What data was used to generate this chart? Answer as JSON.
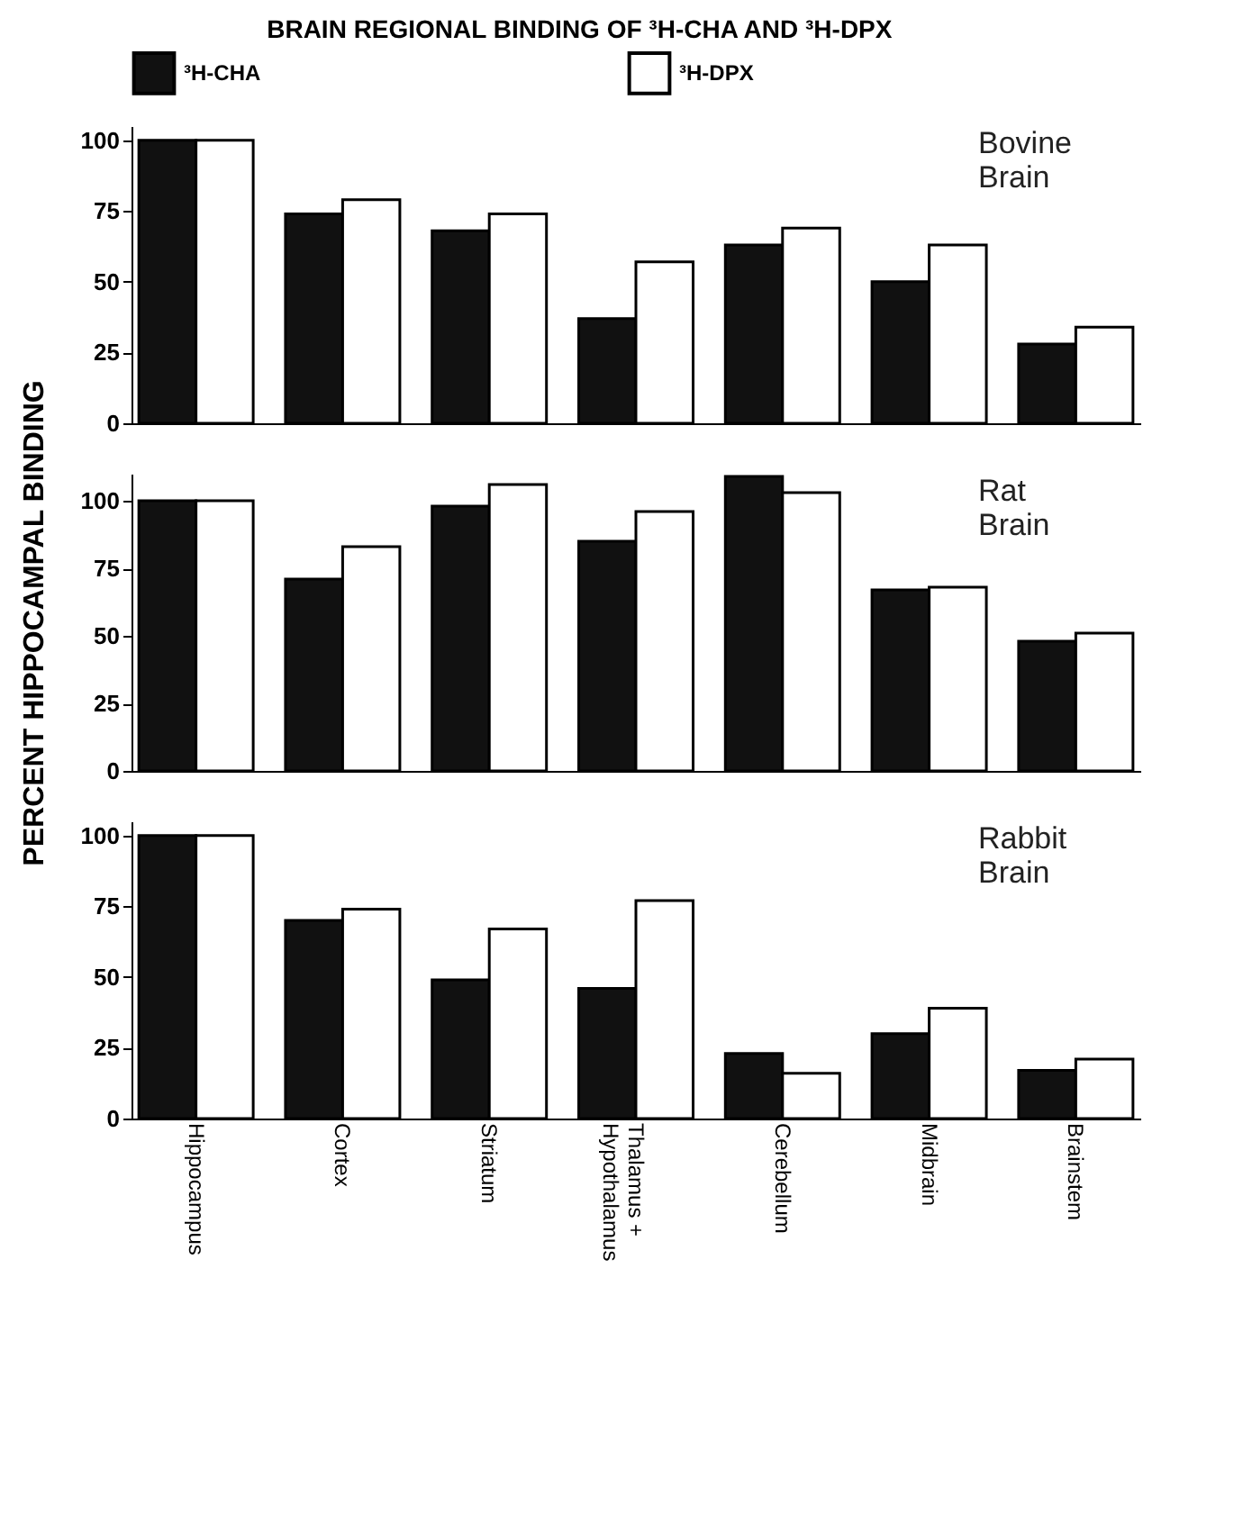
{
  "chart_data": [
    {
      "type": "bar",
      "title": "BRAIN REGIONAL BINDING OF ³H-CHA AND ³H-DPX",
      "annotations": [
        "Bovine Brain"
      ],
      "categories": [
        "Hippocampus",
        "Cortex",
        "Striatum",
        "Thalamus + Hypothalamus",
        "Cerebellum",
        "Midbrain",
        "Brainstem"
      ],
      "series": [
        {
          "name": "³H-CHA",
          "color": "#111111",
          "values": [
            100,
            74,
            68,
            37,
            63,
            50,
            28
          ]
        },
        {
          "name": "³H-DPX",
          "color": "#ffffff",
          "values": [
            100,
            79,
            74,
            57,
            69,
            63,
            34
          ]
        }
      ],
      "ylim": [
        0,
        105
      ],
      "yticks": [
        0,
        25,
        50,
        75,
        100
      ],
      "grid": false,
      "legend": "top",
      "tick_labels": "y"
    },
    {
      "type": "bar",
      "ylabel": "PERCENT HIPPOCAMPAL BINDING",
      "annotations": [
        "Rat Brain"
      ],
      "categories": [
        "Hippocampus",
        "Cortex",
        "Striatum",
        "Thalamus + Hypothalamus",
        "Cerebellum",
        "Midbrain",
        "Brainstem"
      ],
      "series": [
        {
          "name": "³H-CHA",
          "color": "#111111",
          "values": [
            100,
            71,
            98,
            85,
            109,
            67,
            48
          ]
        },
        {
          "name": "³H-DPX",
          "color": "#ffffff",
          "values": [
            100,
            83,
            106,
            96,
            103,
            68,
            51
          ]
        }
      ],
      "ylim": [
        0,
        110
      ],
      "yticks": [
        0,
        25,
        50,
        75,
        100
      ],
      "grid": false,
      "legend": false,
      "tick_labels": "y"
    },
    {
      "type": "bar",
      "annotations": [
        "Rabbit Brain"
      ],
      "categories": [
        "Hippocampus",
        "Cortex",
        "Striatum",
        "Thalamus + Hypothalamus",
        "Cerebellum",
        "Midbrain",
        "Brainstem"
      ],
      "series": [
        {
          "name": "³H-CHA",
          "color": "#111111",
          "values": [
            100,
            70,
            49,
            46,
            23,
            30,
            17
          ]
        },
        {
          "name": "³H-DPX",
          "color": "#ffffff",
          "values": [
            100,
            74,
            67,
            77,
            16,
            39,
            21
          ]
        }
      ],
      "ylim": [
        0,
        105
      ],
      "yticks": [
        0,
        25,
        50,
        75,
        100
      ],
      "grid": false,
      "legend": false
    }
  ]
}
